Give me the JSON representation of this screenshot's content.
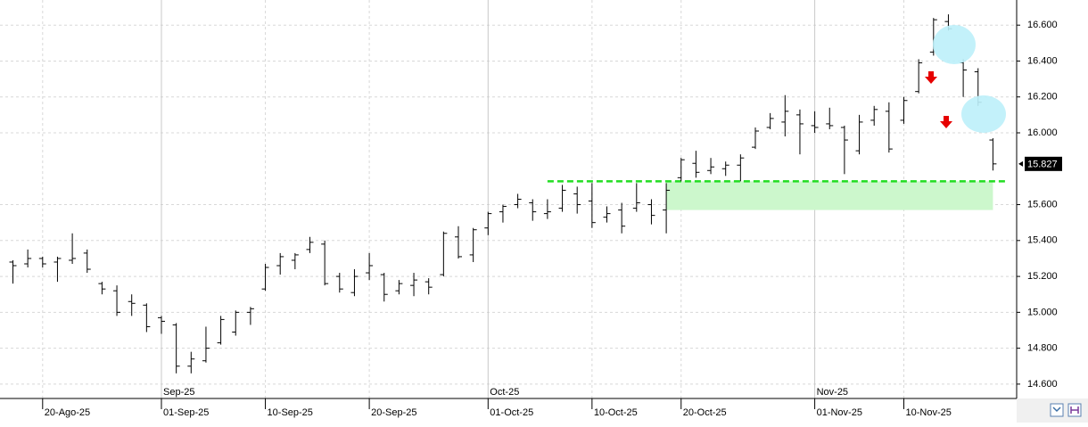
{
  "chart_data": {
    "type": "ohlc",
    "categories": [
      null,
      null,
      "20-Ago-25",
      null,
      null,
      null,
      null,
      null,
      null,
      null,
      "01-Sep-25",
      null,
      null,
      null,
      null,
      null,
      null,
      "10-Sep-25",
      null,
      null,
      null,
      null,
      null,
      null,
      "20-Sep-25",
      null,
      null,
      null,
      null,
      null,
      null,
      null,
      "01-Oct-25",
      null,
      null,
      null,
      null,
      null,
      null,
      "10-Oct-25",
      null,
      null,
      null,
      null,
      null,
      "20-Oct-25",
      null,
      null,
      null,
      null,
      null,
      null,
      null,
      null,
      "01-Nov-25",
      null,
      null,
      null,
      null,
      null,
      "10-Nov-25",
      null,
      null,
      null,
      null,
      null,
      null
    ],
    "months": [
      "Sep-25",
      "Oct-25",
      "Nov-25"
    ],
    "open": [
      15.28,
      15.27,
      15.3,
      15.28,
      15.29,
      15.33,
      15.16,
      15.12,
      15.06,
      15.04,
      14.97,
      14.93,
      14.7,
      14.73,
      14.83,
      14.89,
      15.0,
      15.13,
      15.26,
      15.29,
      15.35,
      15.38,
      15.2,
      15.11,
      15.22,
      15.21,
      15.12,
      15.15,
      15.17,
      15.21,
      15.42,
      15.32,
      15.47,
      15.56,
      15.6,
      15.61,
      15.55,
      15.58,
      15.66,
      15.62,
      15.53,
      15.57,
      15.58,
      15.6,
      15.57,
      15.75,
      15.83,
      15.79,
      15.8,
      15.82,
      15.92,
      16.03,
      16.06,
      16.1,
      16.04,
      16.05,
      16.03,
      15.9,
      16.07,
      16.12,
      16.07,
      16.23,
      16.45,
      16.62,
      16.39,
      16.34,
      15.96
    ],
    "high": [
      15.29,
      15.35,
      15.31,
      15.31,
      15.44,
      15.35,
      15.17,
      15.15,
      15.1,
      15.05,
      14.98,
      14.94,
      14.78,
      14.92,
      14.98,
      15.01,
      15.03,
      15.27,
      15.33,
      15.33,
      15.42,
      15.4,
      15.22,
      15.24,
      15.33,
      15.22,
      15.18,
      15.22,
      15.19,
      15.45,
      15.48,
      15.47,
      15.56,
      15.6,
      15.66,
      15.63,
      15.63,
      15.71,
      15.7,
      15.72,
      15.59,
      15.61,
      15.72,
      15.63,
      15.72,
      15.86,
      15.9,
      15.86,
      15.84,
      15.88,
      16.03,
      16.11,
      16.21,
      16.13,
      16.12,
      16.14,
      16.04,
      16.1,
      16.15,
      16.17,
      16.2,
      16.41,
      16.64,
      16.66,
      16.41,
      16.36,
      15.97
    ],
    "low": [
      15.16,
      15.25,
      15.25,
      15.17,
      15.27,
      15.22,
      15.1,
      14.98,
      14.98,
      14.89,
      14.88,
      14.66,
      14.66,
      14.72,
      14.82,
      14.87,
      14.93,
      15.12,
      15.21,
      15.24,
      15.33,
      15.15,
      15.11,
      15.09,
      15.18,
      15.06,
      15.1,
      15.09,
      15.1,
      15.2,
      15.3,
      15.28,
      15.43,
      15.5,
      15.58,
      15.51,
      15.52,
      15.56,
      15.55,
      15.47,
      15.5,
      15.44,
      15.56,
      15.49,
      15.44,
      15.73,
      15.75,
      15.77,
      15.76,
      15.73,
      15.91,
      16.02,
      15.98,
      15.88,
      16.0,
      16.02,
      15.77,
      15.88,
      16.04,
      15.89,
      16.05,
      16.22,
      16.43,
      16.57,
      16.2,
      16.15,
      15.79
    ],
    "close": [
      15.26,
      15.3,
      15.27,
      15.3,
      15.3,
      15.24,
      15.13,
      15.0,
      15.05,
      14.92,
      14.95,
      14.7,
      14.74,
      14.8,
      14.96,
      15.0,
      15.02,
      15.25,
      15.31,
      15.32,
      15.39,
      15.16,
      15.13,
      15.2,
      15.26,
      15.1,
      15.16,
      15.18,
      15.14,
      15.44,
      15.31,
      15.46,
      15.55,
      15.59,
      15.63,
      15.56,
      15.56,
      15.68,
      15.6,
      15.5,
      15.55,
      15.48,
      15.61,
      15.54,
      15.68,
      15.85,
      15.78,
      15.81,
      15.82,
      15.86,
      16.01,
      16.08,
      16.12,
      16.05,
      16.03,
      16.04,
      15.96,
      16.06,
      16.13,
      15.91,
      16.18,
      16.39,
      16.63,
      16.58,
      16.35,
      16.17,
      15.827
    ],
    "color": "#000000",
    "ylim": [
      14.52,
      16.74
    ],
    "yticks": [
      {
        "value": 14.6,
        "label": "14.600"
      },
      {
        "value": 14.8,
        "label": "14.800"
      },
      {
        "value": 15.0,
        "label": "15.000"
      },
      {
        "value": 15.2,
        "label": "15.200"
      },
      {
        "value": 15.4,
        "label": "15.400"
      },
      {
        "value": 15.6,
        "label": "15.600"
      },
      {
        "value": 16.0,
        "label": "16.000"
      },
      {
        "value": 16.2,
        "label": "16.200"
      },
      {
        "value": 16.4,
        "label": "16.400"
      },
      {
        "value": 16.6,
        "label": "16.600"
      }
    ],
    "grid": true,
    "support": {
      "level": 15.73,
      "zone_low": 15.57,
      "line_color": "#22dd22",
      "zone_color": "#ccf7cc"
    }
  }
}
